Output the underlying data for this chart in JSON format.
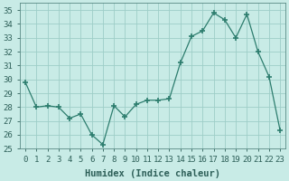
{
  "x": [
    0,
    1,
    2,
    3,
    4,
    5,
    6,
    7,
    8,
    9,
    10,
    11,
    12,
    13,
    14,
    15,
    16,
    17,
    18,
    19,
    20,
    21,
    22,
    23
  ],
  "y": [
    29.8,
    28.0,
    28.1,
    28.0,
    27.2,
    27.5,
    26.0,
    25.3,
    28.1,
    27.3,
    28.2,
    28.5,
    28.5,
    28.6,
    31.2,
    33.1,
    33.5,
    34.8,
    34.3,
    33.0,
    34.7,
    32.0,
    30.2,
    26.3
  ],
  "line_color": "#2d7d6e",
  "marker": "+",
  "marker_size": 4,
  "bg_color": "#c8ebe6",
  "grid_color": "#9ecec7",
  "xlabel": "Humidex (Indice chaleur)",
  "xlim": [
    -0.5,
    23.5
  ],
  "ylim": [
    25,
    35.5
  ],
  "yticks": [
    25,
    26,
    27,
    28,
    29,
    30,
    31,
    32,
    33,
    34,
    35
  ],
  "xticks": [
    0,
    1,
    2,
    3,
    4,
    5,
    6,
    7,
    8,
    9,
    10,
    11,
    12,
    13,
    14,
    15,
    16,
    17,
    18,
    19,
    20,
    21,
    22,
    23
  ],
  "xtick_labels": [
    "0",
    "1",
    "2",
    "3",
    "4",
    "5",
    "6",
    "7",
    "8",
    "9",
    "10",
    "11",
    "12",
    "13",
    "14",
    "15",
    "16",
    "17",
    "18",
    "19",
    "20",
    "21",
    "22",
    "23"
  ],
  "tick_fontsize": 6.5,
  "label_fontsize": 7.5,
  "tick_color": "#2d5f58",
  "label_color": "#2d5f58"
}
